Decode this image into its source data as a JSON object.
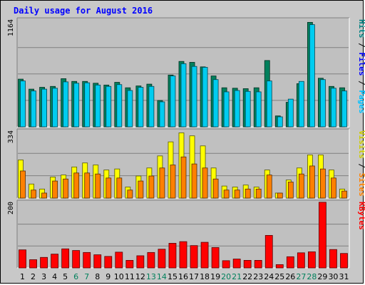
{
  "chart_data": {
    "type": "bar",
    "title": "Daily usage for August 2016",
    "categories": [
      "1",
      "2",
      "3",
      "4",
      "5",
      "6",
      "7",
      "8",
      "9",
      "10",
      "11",
      "12",
      "13",
      "14",
      "15",
      "16",
      "17",
      "18",
      "19",
      "20",
      "21",
      "22",
      "23",
      "24",
      "25",
      "26",
      "27",
      "28",
      "29",
      "30",
      "31"
    ],
    "weekend_days": [
      "6",
      "7",
      "13",
      "14",
      "20",
      "21",
      "27",
      "28"
    ],
    "panels": [
      {
        "ymax_label": "1164",
        "ymax": 1164,
        "right_labels": [
          {
            "text": "Hits",
            "color": "#008080"
          },
          {
            "text": " / ",
            "color": "#000000"
          },
          {
            "text": "Files",
            "color": "#0000ff"
          },
          {
            "text": " / ",
            "color": "#000000"
          },
          {
            "text": "Pages",
            "color": "#00c0ff"
          }
        ],
        "series": [
          {
            "key": "hits",
            "color": "#00805c",
            "values": [
              525,
              415,
              435,
              445,
              530,
              500,
              500,
              480,
              460,
              490,
              430,
              450,
              470,
              290,
              570,
              720,
              710,
              660,
              560,
              430,
              425,
              420,
              430,
              730,
              120,
              270,
              475,
              1150,
              535,
              445,
              430
            ]
          },
          {
            "key": "files",
            "color": "#00ccf0",
            "values": [
              505,
              395,
              415,
              425,
              495,
              480,
              485,
              460,
              445,
              465,
              400,
              435,
              445,
              275,
              560,
              695,
              665,
              655,
              520,
              385,
              400,
              390,
              385,
              505,
              110,
              305,
              500,
              1125,
              520,
              425,
              395
            ]
          }
        ]
      },
      {
        "ymax_label": "334",
        "ymax": 334,
        "right_labels": [
          {
            "text": "Visits",
            "color": "#cccc00"
          },
          {
            "text": " / ",
            "color": "#000000"
          },
          {
            "text": "Sites",
            "color": "#ff8000"
          }
        ],
        "series": [
          {
            "key": "visits",
            "color": "#ffff00",
            "values": [
              190,
              70,
              45,
              105,
              115,
              155,
              175,
              165,
              140,
              145,
              55,
              110,
              150,
              210,
              280,
              325,
              310,
              260,
              150,
              60,
              55,
              65,
              55,
              140,
              25,
              90,
              150,
              215,
              215,
              140,
              45
            ]
          },
          {
            "key": "sites",
            "color": "#ff8000",
            "values": [
              135,
              40,
              25,
              85,
              95,
              125,
              125,
              120,
              100,
              100,
              40,
              85,
              110,
              150,
              165,
              205,
              170,
              150,
              95,
              40,
              40,
              45,
              45,
              115,
              25,
              80,
              120,
              160,
              145,
              100,
              35
            ]
          }
        ]
      },
      {
        "ymax_label": "200",
        "ymax": 200,
        "right_labels": [
          {
            "text": "KBytes",
            "color": "#ff0000"
          }
        ],
        "series": [
          {
            "key": "kbytes",
            "color": "#ff0000",
            "values": [
              55,
              25,
              32,
              42,
              58,
              53,
              47,
              40,
              35,
              48,
              23,
              37,
              47,
              57,
              75,
              80,
              68,
              78,
              62,
              22,
              27,
              23,
              23,
              99,
              10,
              34,
              46,
              49,
              200,
              56,
              44
            ]
          }
        ]
      }
    ]
  }
}
